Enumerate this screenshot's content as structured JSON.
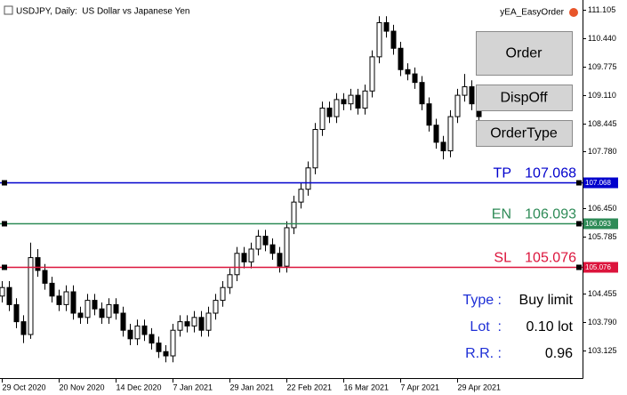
{
  "title": "USDJPY, Daily:  US Dollar vs Japanese Yen",
  "ea_name": "yEA_EasyOrder",
  "buttons": [
    "Order",
    "DispOff",
    "OrderType"
  ],
  "panel": [
    {
      "label": "Type :",
      "value": "Buy limit"
    },
    {
      "label": "Lot  :",
      "value": "0.10 lot"
    },
    {
      "label": "R.R. :",
      "value": "0.96"
    }
  ],
  "chart_data": {
    "type": "candlestick",
    "up_color": "#ffffff",
    "down_color": "#000000",
    "wick_color": "#000000",
    "xlim": [
      -0.25,
      81.6
    ],
    "xticks": [
      {
        "value": 0,
        "label": "29 Oct 2020"
      },
      {
        "value": 8,
        "label": "20 Nov 2020"
      },
      {
        "value": 16,
        "label": "14 Dec 2020"
      },
      {
        "value": 24,
        "label": "7 Jan 2021"
      },
      {
        "value": 32,
        "label": "29 Jan 2021"
      },
      {
        "value": 40,
        "label": "22 Feb 2021"
      },
      {
        "value": 48,
        "label": "16 Mar 2021"
      },
      {
        "value": 56,
        "label": "7 Apr 2021"
      },
      {
        "value": 64,
        "label": "29 Apr 2021"
      }
    ],
    "ylim": [
      102.48,
      111.33
    ],
    "yticks": [
      111.105,
      {
        "value": 110.44,
        "label": "110.440"
      },
      109.775,
      {
        "value": 109.11,
        "label": "109.110"
      },
      108.445,
      {
        "value": 107.78,
        "label": "107.780"
      },
      {
        "value": 106.45,
        "label": "106.450"
      },
      105.785,
      104.455,
      {
        "value": 103.79,
        "label": "103.790"
      },
      103.125
    ],
    "levels": [
      {
        "name": "TP",
        "value": 107.068,
        "color": "#0000cd"
      },
      {
        "name": "EN",
        "value": 106.093,
        "color": "#2e8b57"
      },
      {
        "name": "SL",
        "value": 105.076,
        "color": "#dc143c"
      }
    ],
    "open": [
      104.4,
      104.6,
      104.2,
      103.8,
      103.5,
      105.3,
      105.0,
      104.7,
      104.4,
      104.2,
      104.5,
      104.0,
      103.9,
      104.3,
      104.1,
      103.9,
      104.2,
      104.0,
      103.6,
      103.4,
      103.7,
      103.5,
      103.3,
      103.1,
      103.0,
      103.6,
      103.8,
      103.7,
      103.9,
      103.6,
      104.0,
      104.3,
      104.6,
      104.9,
      105.4,
      105.2,
      105.5,
      105.8,
      105.6,
      105.4,
      105.1,
      106.0,
      106.6,
      106.9,
      107.4,
      108.3,
      108.8,
      108.6,
      109.0,
      108.9,
      109.1,
      108.8,
      109.2,
      110.0,
      110.8,
      110.6,
      110.2,
      109.7,
      109.6,
      109.4,
      108.9,
      108.4,
      108.0,
      107.8,
      108.6,
      109.1,
      109.3,
      108.9
    ],
    "high": [
      104.75,
      104.75,
      104.35,
      103.95,
      105.65,
      105.5,
      105.15,
      104.85,
      104.55,
      104.65,
      104.65,
      104.15,
      104.45,
      104.45,
      104.25,
      104.35,
      104.35,
      104.15,
      103.75,
      103.85,
      103.85,
      103.65,
      103.45,
      103.25,
      103.75,
      103.95,
      103.95,
      104.05,
      104.05,
      104.15,
      104.45,
      104.75,
      105.05,
      105.55,
      105.55,
      105.65,
      105.95,
      105.95,
      105.75,
      105.55,
      106.15,
      106.75,
      107.05,
      107.55,
      108.45,
      108.95,
      108.95,
      109.15,
      109.15,
      109.25,
      109.25,
      109.35,
      110.15,
      110.95,
      110.95,
      110.75,
      110.35,
      109.85,
      109.75,
      109.55,
      109.05,
      108.55,
      108.15,
      108.75,
      109.25,
      109.6,
      109.45,
      109.05
    ],
    "low": [
      104.25,
      104.05,
      103.65,
      103.3,
      103.4,
      104.85,
      104.55,
      104.25,
      104.05,
      104.05,
      103.85,
      103.75,
      103.75,
      103.95,
      103.75,
      103.75,
      103.85,
      103.45,
      103.25,
      103.25,
      103.35,
      103.15,
      102.95,
      102.85,
      102.85,
      103.45,
      103.55,
      103.55,
      103.45,
      103.45,
      103.85,
      104.15,
      104.45,
      104.75,
      105.05,
      105.05,
      105.35,
      105.45,
      105.25,
      104.95,
      104.95,
      105.85,
      106.45,
      106.75,
      107.25,
      108.15,
      108.45,
      108.45,
      108.75,
      108.75,
      108.65,
      108.65,
      109.05,
      109.85,
      110.45,
      110.05,
      109.55,
      109.45,
      109.25,
      108.75,
      108.25,
      107.85,
      107.6,
      107.65,
      108.45,
      108.95,
      108.75,
      108.45
    ],
    "close": [
      104.6,
      104.2,
      103.8,
      103.5,
      105.3,
      105.0,
      104.7,
      104.4,
      104.2,
      104.5,
      104.0,
      103.9,
      104.3,
      104.1,
      103.9,
      104.2,
      104.0,
      103.6,
      103.4,
      103.7,
      103.5,
      103.3,
      103.1,
      103.0,
      103.6,
      103.8,
      103.7,
      103.9,
      103.6,
      104.0,
      104.3,
      104.6,
      104.9,
      105.4,
      105.2,
      105.5,
      105.8,
      105.6,
      105.4,
      105.1,
      106.0,
      106.6,
      106.9,
      107.4,
      108.3,
      108.8,
      108.6,
      109.0,
      108.9,
      109.1,
      108.8,
      109.2,
      110.0,
      110.8,
      110.6,
      110.2,
      109.7,
      109.6,
      109.4,
      108.9,
      108.4,
      108.0,
      107.8,
      108.6,
      109.1,
      109.3,
      108.9,
      108.6
    ]
  }
}
